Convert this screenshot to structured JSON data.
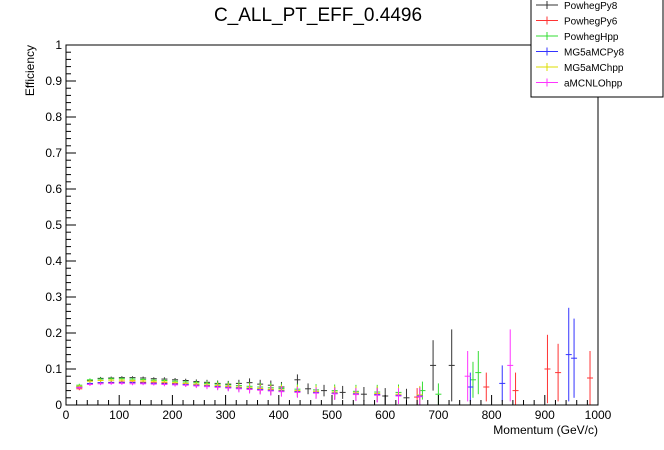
{
  "chart_data": {
    "type": "scatter",
    "title": "C_ALL_PT_EFF_0.4496",
    "xlabel": "Momentum (GeV/c)",
    "ylabel": "Efficiency",
    "xlim": [
      0,
      1000
    ],
    "ylim": [
      0,
      1
    ],
    "x_ticks": [
      "0",
      "100",
      "200",
      "300",
      "400",
      "500",
      "600",
      "700",
      "800",
      "900",
      "1000"
    ],
    "y_ticks": [
      "0",
      "0.1",
      "0.2",
      "0.3",
      "0.4",
      "0.5",
      "0.6",
      "0.7",
      "0.8",
      "0.9",
      "1"
    ],
    "grid": false,
    "legend_position": "top-right",
    "series": [
      {
        "name": "PowhegPy8",
        "color": "#333333",
        "points": [
          {
            "x": 25,
            "y": 0.05,
            "err": 0.004
          },
          {
            "x": 45,
            "y": 0.068,
            "err": 0.004
          },
          {
            "x": 65,
            "y": 0.074,
            "err": 0.004
          },
          {
            "x": 85,
            "y": 0.075,
            "err": 0.004
          },
          {
            "x": 105,
            "y": 0.076,
            "err": 0.004
          },
          {
            "x": 125,
            "y": 0.076,
            "err": 0.004
          },
          {
            "x": 145,
            "y": 0.075,
            "err": 0.004
          },
          {
            "x": 165,
            "y": 0.073,
            "err": 0.004
          },
          {
            "x": 185,
            "y": 0.072,
            "err": 0.005
          },
          {
            "x": 205,
            "y": 0.07,
            "err": 0.005
          },
          {
            "x": 225,
            "y": 0.068,
            "err": 0.005
          },
          {
            "x": 245,
            "y": 0.065,
            "err": 0.006
          },
          {
            "x": 265,
            "y": 0.063,
            "err": 0.007
          },
          {
            "x": 285,
            "y": 0.06,
            "err": 0.008
          },
          {
            "x": 305,
            "y": 0.058,
            "err": 0.009
          },
          {
            "x": 325,
            "y": 0.06,
            "err": 0.01
          },
          {
            "x": 345,
            "y": 0.062,
            "err": 0.012
          },
          {
            "x": 365,
            "y": 0.058,
            "err": 0.012
          },
          {
            "x": 385,
            "y": 0.055,
            "err": 0.013
          },
          {
            "x": 405,
            "y": 0.05,
            "err": 0.014
          },
          {
            "x": 435,
            "y": 0.07,
            "err": 0.015
          },
          {
            "x": 455,
            "y": 0.045,
            "err": 0.015
          },
          {
            "x": 485,
            "y": 0.04,
            "err": 0.016
          },
          {
            "x": 520,
            "y": 0.035,
            "err": 0.018
          },
          {
            "x": 560,
            "y": 0.03,
            "err": 0.02
          },
          {
            "x": 600,
            "y": 0.025,
            "err": 0.022
          },
          {
            "x": 640,
            "y": 0.02,
            "err": 0.025
          },
          {
            "x": 690,
            "y": 0.11,
            "err": 0.07
          },
          {
            "x": 725,
            "y": 0.11,
            "err": 0.1
          }
        ]
      },
      {
        "name": "PowhegPy6",
        "color": "#ff3333",
        "points": [
          {
            "x": 25,
            "y": 0.045,
            "err": 0.004
          },
          {
            "x": 45,
            "y": 0.058,
            "err": 0.004
          },
          {
            "x": 65,
            "y": 0.062,
            "err": 0.004
          },
          {
            "x": 85,
            "y": 0.063,
            "err": 0.004
          },
          {
            "x": 105,
            "y": 0.064,
            "err": 0.004
          },
          {
            "x": 125,
            "y": 0.064,
            "err": 0.004
          },
          {
            "x": 145,
            "y": 0.063,
            "err": 0.004
          },
          {
            "x": 165,
            "y": 0.062,
            "err": 0.004
          },
          {
            "x": 185,
            "y": 0.061,
            "err": 0.005
          },
          {
            "x": 205,
            "y": 0.06,
            "err": 0.005
          },
          {
            "x": 225,
            "y": 0.058,
            "err": 0.005
          },
          {
            "x": 245,
            "y": 0.056,
            "err": 0.006
          },
          {
            "x": 265,
            "y": 0.054,
            "err": 0.007
          },
          {
            "x": 285,
            "y": 0.052,
            "err": 0.008
          },
          {
            "x": 305,
            "y": 0.05,
            "err": 0.009
          },
          {
            "x": 325,
            "y": 0.048,
            "err": 0.01
          },
          {
            "x": 345,
            "y": 0.046,
            "err": 0.011
          },
          {
            "x": 365,
            "y": 0.044,
            "err": 0.012
          },
          {
            "x": 385,
            "y": 0.042,
            "err": 0.013
          },
          {
            "x": 405,
            "y": 0.04,
            "err": 0.014
          },
          {
            "x": 435,
            "y": 0.038,
            "err": 0.015
          },
          {
            "x": 470,
            "y": 0.035,
            "err": 0.016
          },
          {
            "x": 505,
            "y": 0.032,
            "err": 0.017
          },
          {
            "x": 545,
            "y": 0.03,
            "err": 0.018
          },
          {
            "x": 585,
            "y": 0.028,
            "err": 0.02
          },
          {
            "x": 625,
            "y": 0.025,
            "err": 0.022
          },
          {
            "x": 660,
            "y": 0.022,
            "err": 0.025
          },
          {
            "x": 790,
            "y": 0.05,
            "err": 0.04
          },
          {
            "x": 845,
            "y": 0.04,
            "err": 0.05
          },
          {
            "x": 905,
            "y": 0.1,
            "err": 0.095
          },
          {
            "x": 925,
            "y": 0.09,
            "err": 0.08
          },
          {
            "x": 985,
            "y": 0.075,
            "err": 0.075
          }
        ]
      },
      {
        "name": "PowhegHpp",
        "color": "#33dd33",
        "points": [
          {
            "x": 25,
            "y": 0.055,
            "err": 0.004
          },
          {
            "x": 45,
            "y": 0.07,
            "err": 0.004
          },
          {
            "x": 65,
            "y": 0.072,
            "err": 0.004
          },
          {
            "x": 85,
            "y": 0.073,
            "err": 0.004
          },
          {
            "x": 105,
            "y": 0.073,
            "err": 0.004
          },
          {
            "x": 125,
            "y": 0.072,
            "err": 0.004
          },
          {
            "x": 145,
            "y": 0.071,
            "err": 0.004
          },
          {
            "x": 165,
            "y": 0.069,
            "err": 0.004
          },
          {
            "x": 185,
            "y": 0.068,
            "err": 0.005
          },
          {
            "x": 205,
            "y": 0.066,
            "err": 0.005
          },
          {
            "x": 225,
            "y": 0.064,
            "err": 0.005
          },
          {
            "x": 245,
            "y": 0.062,
            "err": 0.006
          },
          {
            "x": 265,
            "y": 0.06,
            "err": 0.007
          },
          {
            "x": 285,
            "y": 0.058,
            "err": 0.008
          },
          {
            "x": 305,
            "y": 0.056,
            "err": 0.009
          },
          {
            "x": 325,
            "y": 0.054,
            "err": 0.01
          },
          {
            "x": 345,
            "y": 0.052,
            "err": 0.011
          },
          {
            "x": 365,
            "y": 0.05,
            "err": 0.012
          },
          {
            "x": 385,
            "y": 0.048,
            "err": 0.013
          },
          {
            "x": 405,
            "y": 0.046,
            "err": 0.014
          },
          {
            "x": 435,
            "y": 0.044,
            "err": 0.015
          },
          {
            "x": 470,
            "y": 0.042,
            "err": 0.016
          },
          {
            "x": 505,
            "y": 0.04,
            "err": 0.017
          },
          {
            "x": 545,
            "y": 0.038,
            "err": 0.018
          },
          {
            "x": 585,
            "y": 0.036,
            "err": 0.02
          },
          {
            "x": 625,
            "y": 0.035,
            "err": 0.022
          },
          {
            "x": 670,
            "y": 0.04,
            "err": 0.025
          },
          {
            "x": 700,
            "y": 0.03,
            "err": 0.03
          },
          {
            "x": 765,
            "y": 0.07,
            "err": 0.05
          },
          {
            "x": 775,
            "y": 0.09,
            "err": 0.06
          }
        ]
      },
      {
        "name": "MG5aMCPy8",
        "color": "#3333ff",
        "points": [
          {
            "x": 25,
            "y": 0.05,
            "err": 0.004
          },
          {
            "x": 45,
            "y": 0.06,
            "err": 0.004
          },
          {
            "x": 65,
            "y": 0.062,
            "err": 0.004
          },
          {
            "x": 85,
            "y": 0.062,
            "err": 0.004
          },
          {
            "x": 105,
            "y": 0.062,
            "err": 0.004
          },
          {
            "x": 125,
            "y": 0.062,
            "err": 0.004
          },
          {
            "x": 145,
            "y": 0.061,
            "err": 0.004
          },
          {
            "x": 165,
            "y": 0.06,
            "err": 0.004
          },
          {
            "x": 185,
            "y": 0.059,
            "err": 0.005
          },
          {
            "x": 205,
            "y": 0.058,
            "err": 0.005
          },
          {
            "x": 225,
            "y": 0.057,
            "err": 0.005
          },
          {
            "x": 245,
            "y": 0.055,
            "err": 0.006
          },
          {
            "x": 265,
            "y": 0.053,
            "err": 0.007
          },
          {
            "x": 285,
            "y": 0.051,
            "err": 0.008
          },
          {
            "x": 305,
            "y": 0.049,
            "err": 0.009
          },
          {
            "x": 325,
            "y": 0.047,
            "err": 0.01
          },
          {
            "x": 345,
            "y": 0.045,
            "err": 0.011
          },
          {
            "x": 365,
            "y": 0.043,
            "err": 0.012
          },
          {
            "x": 385,
            "y": 0.041,
            "err": 0.013
          },
          {
            "x": 405,
            "y": 0.039,
            "err": 0.014
          },
          {
            "x": 435,
            "y": 0.037,
            "err": 0.015
          },
          {
            "x": 470,
            "y": 0.035,
            "err": 0.016
          },
          {
            "x": 505,
            "y": 0.033,
            "err": 0.017
          },
          {
            "x": 545,
            "y": 0.031,
            "err": 0.018
          },
          {
            "x": 585,
            "y": 0.029,
            "err": 0.02
          },
          {
            "x": 625,
            "y": 0.027,
            "err": 0.022
          },
          {
            "x": 665,
            "y": 0.025,
            "err": 0.025
          },
          {
            "x": 760,
            "y": 0.05,
            "err": 0.04
          },
          {
            "x": 820,
            "y": 0.06,
            "err": 0.05
          },
          {
            "x": 945,
            "y": 0.14,
            "err": 0.13
          },
          {
            "x": 955,
            "y": 0.13,
            "err": 0.11
          }
        ]
      },
      {
        "name": "MG5aMChpp",
        "color": "#dddd00",
        "points": [
          {
            "x": 25,
            "y": 0.052,
            "err": 0.004
          },
          {
            "x": 45,
            "y": 0.066,
            "err": 0.004
          },
          {
            "x": 65,
            "y": 0.068,
            "err": 0.004
          },
          {
            "x": 85,
            "y": 0.069,
            "err": 0.004
          },
          {
            "x": 105,
            "y": 0.069,
            "err": 0.004
          },
          {
            "x": 125,
            "y": 0.068,
            "err": 0.004
          },
          {
            "x": 145,
            "y": 0.067,
            "err": 0.004
          },
          {
            "x": 165,
            "y": 0.066,
            "err": 0.004
          },
          {
            "x": 185,
            "y": 0.064,
            "err": 0.005
          },
          {
            "x": 205,
            "y": 0.062,
            "err": 0.005
          },
          {
            "x": 225,
            "y": 0.06,
            "err": 0.005
          },
          {
            "x": 245,
            "y": 0.058,
            "err": 0.006
          },
          {
            "x": 265,
            "y": 0.056,
            "err": 0.007
          },
          {
            "x": 285,
            "y": 0.054,
            "err": 0.008
          },
          {
            "x": 305,
            "y": 0.052,
            "err": 0.009
          },
          {
            "x": 325,
            "y": 0.05,
            "err": 0.01
          },
          {
            "x": 345,
            "y": 0.048,
            "err": 0.011
          },
          {
            "x": 365,
            "y": 0.046,
            "err": 0.012
          },
          {
            "x": 385,
            "y": 0.044,
            "err": 0.013
          },
          {
            "x": 405,
            "y": 0.042,
            "err": 0.014
          },
          {
            "x": 435,
            "y": 0.04,
            "err": 0.015
          },
          {
            "x": 470,
            "y": 0.038,
            "err": 0.016
          },
          {
            "x": 505,
            "y": 0.036,
            "err": 0.017
          },
          {
            "x": 545,
            "y": 0.034,
            "err": 0.018
          },
          {
            "x": 585,
            "y": 0.032,
            "err": 0.02
          },
          {
            "x": 625,
            "y": 0.03,
            "err": 0.022
          },
          {
            "x": 665,
            "y": 0.028,
            "err": 0.025
          }
        ]
      },
      {
        "name": "aMCNLOhpp",
        "color": "#ff33ff",
        "points": [
          {
            "x": 25,
            "y": 0.048,
            "err": 0.004
          },
          {
            "x": 45,
            "y": 0.057,
            "err": 0.004
          },
          {
            "x": 65,
            "y": 0.059,
            "err": 0.004
          },
          {
            "x": 85,
            "y": 0.06,
            "err": 0.004
          },
          {
            "x": 105,
            "y": 0.06,
            "err": 0.004
          },
          {
            "x": 125,
            "y": 0.059,
            "err": 0.004
          },
          {
            "x": 145,
            "y": 0.059,
            "err": 0.004
          },
          {
            "x": 165,
            "y": 0.058,
            "err": 0.004
          },
          {
            "x": 185,
            "y": 0.057,
            "err": 0.005
          },
          {
            "x": 205,
            "y": 0.056,
            "err": 0.005
          },
          {
            "x": 225,
            "y": 0.055,
            "err": 0.005
          },
          {
            "x": 245,
            "y": 0.053,
            "err": 0.006
          },
          {
            "x": 265,
            "y": 0.051,
            "err": 0.007
          },
          {
            "x": 285,
            "y": 0.049,
            "err": 0.008
          },
          {
            "x": 305,
            "y": 0.047,
            "err": 0.009
          },
          {
            "x": 325,
            "y": 0.045,
            "err": 0.01
          },
          {
            "x": 345,
            "y": 0.043,
            "err": 0.011
          },
          {
            "x": 365,
            "y": 0.041,
            "err": 0.012
          },
          {
            "x": 385,
            "y": 0.039,
            "err": 0.013
          },
          {
            "x": 405,
            "y": 0.037,
            "err": 0.014
          },
          {
            "x": 435,
            "y": 0.035,
            "err": 0.015
          },
          {
            "x": 470,
            "y": 0.033,
            "err": 0.016
          },
          {
            "x": 505,
            "y": 0.031,
            "err": 0.017
          },
          {
            "x": 545,
            "y": 0.029,
            "err": 0.018
          },
          {
            "x": 585,
            "y": 0.027,
            "err": 0.02
          },
          {
            "x": 625,
            "y": 0.025,
            "err": 0.022
          },
          {
            "x": 665,
            "y": 0.023,
            "err": 0.025
          },
          {
            "x": 755,
            "y": 0.08,
            "err": 0.07
          },
          {
            "x": 835,
            "y": 0.11,
            "err": 0.1
          }
        ]
      }
    ]
  }
}
